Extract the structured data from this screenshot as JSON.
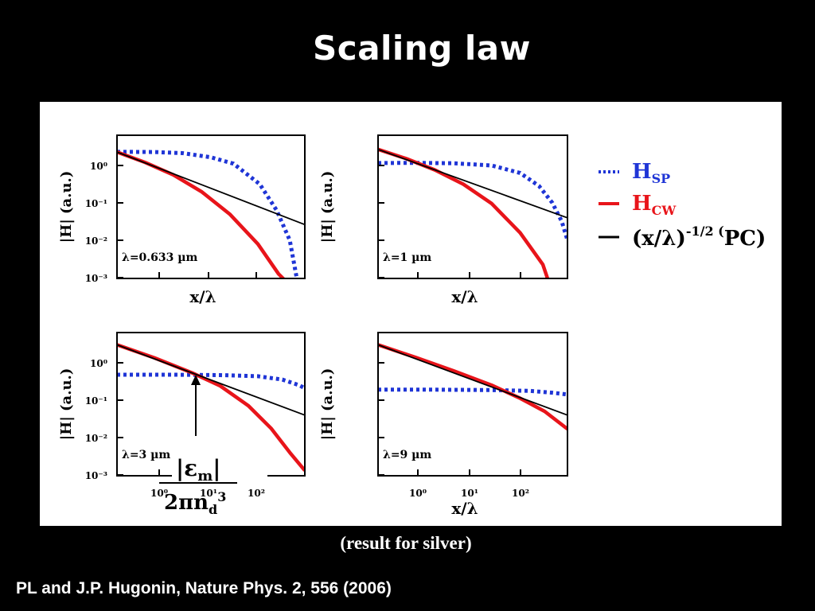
{
  "slide": {
    "title": "Scaling law",
    "caption": "(result for silver)",
    "citation": "PL and J.P. Hugonin, Nature Phys. 2, 556 (2006)"
  },
  "legend": {
    "sp": {
      "base": "H",
      "sub": "SP",
      "color": "#1f35d6"
    },
    "cw": {
      "base": "H",
      "sub": "CW",
      "color": "#e8141a"
    },
    "pc": {
      "base": "(x/λ)",
      "sup": "-1/2 (",
      "tail": "PC)",
      "color": "#000000"
    }
  },
  "annotation": {
    "numerator": "|εm|",
    "denominator": "2πnd3"
  },
  "chart_data": [
    {
      "type": "line",
      "panel": "top-left",
      "note": "λ=0.633 µm",
      "ylabel": "|H| (a.u.)",
      "xlabel": "x/λ",
      "yticks": [
        "10⁰",
        "10⁻¹",
        "10⁻²",
        "10⁻³"
      ],
      "xticks": [],
      "yscale": "log",
      "xscale": "log",
      "series": [
        {
          "name": "HSP",
          "style": "dotted",
          "color": "#1f35d6",
          "points": [
            [
              0,
              0.365
            ],
            [
              0.2,
              0.36
            ],
            [
              0.35,
              0.33
            ],
            [
              0.5,
              0.22
            ],
            [
              0.62,
              0.05
            ],
            [
              0.76,
              -0.5
            ],
            [
              0.85,
              -1.2
            ],
            [
              0.92,
              -2.0
            ],
            [
              0.96,
              -3.1
            ]
          ]
        },
        {
          "name": "HCW",
          "style": "solid",
          "color": "#e8141a",
          "points": [
            [
              0,
              0.36
            ],
            [
              0.15,
              0.08
            ],
            [
              0.3,
              -0.25
            ],
            [
              0.45,
              -0.7
            ],
            [
              0.6,
              -1.3
            ],
            [
              0.75,
              -2.1
            ],
            [
              0.86,
              -2.9
            ],
            [
              0.9,
              -3.1
            ]
          ]
        },
        {
          "name": "(x/λ)^-1/2",
          "style": "line",
          "color": "#000000",
          "points": [
            [
              0,
              0.36
            ],
            [
              1,
              -1.58
            ]
          ]
        }
      ]
    },
    {
      "type": "line",
      "panel": "top-right",
      "note": "λ=1 µm",
      "ylabel": "|H| (a.u.)",
      "xlabel": "x/λ",
      "yticks": [],
      "xticks": [],
      "yscale": "log",
      "xscale": "log",
      "series": [
        {
          "name": "HSP",
          "style": "dotted",
          "color": "#1f35d6",
          "points": [
            [
              0,
              0.065
            ],
            [
              0.2,
              0.07
            ],
            [
              0.4,
              0.06
            ],
            [
              0.6,
              0.0
            ],
            [
              0.75,
              -0.2
            ],
            [
              0.85,
              -0.55
            ],
            [
              0.92,
              -1.0
            ],
            [
              0.97,
              -1.5
            ],
            [
              1.0,
              -2.0
            ]
          ]
        },
        {
          "name": "HCW",
          "style": "solid",
          "color": "#e8141a",
          "points": [
            [
              0,
              0.43
            ],
            [
              0.15,
              0.18
            ],
            [
              0.3,
              -0.12
            ],
            [
              0.45,
              -0.5
            ],
            [
              0.6,
              -1.02
            ],
            [
              0.75,
              -1.8
            ],
            [
              0.87,
              -2.65
            ],
            [
              0.9,
              -3.1
            ]
          ]
        },
        {
          "name": "(x/λ)^-1/2",
          "style": "line",
          "color": "#000000",
          "points": [
            [
              0,
              0.43
            ],
            [
              1,
              -1.4
            ]
          ]
        }
      ]
    },
    {
      "type": "line",
      "panel": "bottom-left",
      "note": "λ=3 µm",
      "ylabel": "|H| (a.u.)",
      "xlabel": "",
      "yticks": [
        "10⁰",
        "10⁻¹",
        "10⁻²",
        "10⁻³"
      ],
      "xticks": [
        "10⁰",
        "10¹",
        "10²"
      ],
      "yscale": "log",
      "xscale": "log",
      "series": [
        {
          "name": "HSP",
          "style": "dotted",
          "color": "#1f35d6",
          "points": [
            [
              0,
              -0.32
            ],
            [
              0.3,
              -0.32
            ],
            [
              0.55,
              -0.33
            ],
            [
              0.75,
              -0.36
            ],
            [
              0.88,
              -0.45
            ],
            [
              0.97,
              -0.6
            ],
            [
              1.0,
              -0.68
            ]
          ]
        },
        {
          "name": "HCW",
          "style": "solid",
          "color": "#e8141a",
          "points": [
            [
              0,
              0.48
            ],
            [
              0.2,
              0.13
            ],
            [
              0.4,
              -0.27
            ],
            [
              0.55,
              -0.62
            ],
            [
              0.7,
              -1.15
            ],
            [
              0.82,
              -1.75
            ],
            [
              0.92,
              -2.4
            ],
            [
              1.0,
              -2.88
            ]
          ]
        },
        {
          "name": "(x/λ)^-1/2",
          "style": "line",
          "color": "#000000",
          "points": [
            [
              0,
              0.48
            ],
            [
              1,
              -1.4
            ]
          ]
        }
      ]
    },
    {
      "type": "line",
      "panel": "bottom-right",
      "note": "λ=9 µm",
      "ylabel": "|H| (a.u.)",
      "xlabel": "x/λ",
      "yticks": [],
      "xticks": [
        "10⁰",
        "10¹",
        "10²"
      ],
      "yscale": "log",
      "xscale": "log",
      "series": [
        {
          "name": "HSP",
          "style": "dotted",
          "color": "#1f35d6",
          "points": [
            [
              0,
              -0.72
            ],
            [
              0.3,
              -0.72
            ],
            [
              0.6,
              -0.73
            ],
            [
              0.8,
              -0.75
            ],
            [
              0.92,
              -0.8
            ],
            [
              1.0,
              -0.85
            ]
          ]
        },
        {
          "name": "HCW",
          "style": "solid",
          "color": "#e8141a",
          "points": [
            [
              0,
              0.48
            ],
            [
              0.2,
              0.14
            ],
            [
              0.4,
              -0.22
            ],
            [
              0.6,
              -0.6
            ],
            [
              0.75,
              -0.95
            ],
            [
              0.88,
              -1.3
            ],
            [
              1.0,
              -1.77
            ]
          ]
        },
        {
          "name": "(x/λ)^-1/2",
          "style": "line",
          "color": "#000000",
          "points": [
            [
              0,
              0.48
            ],
            [
              1,
              -1.4
            ]
          ]
        }
      ]
    }
  ]
}
